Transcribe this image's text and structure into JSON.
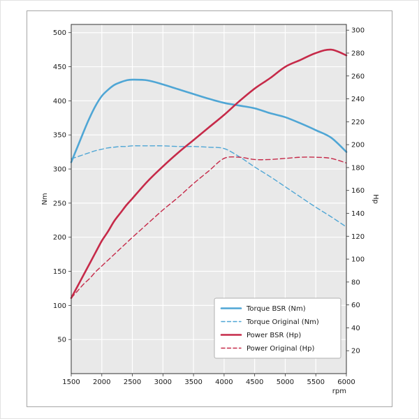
{
  "chart_data": {
    "type": "line",
    "title": "",
    "xlabel": "rpm",
    "ylabel_left": "Nm",
    "ylabel_right": "Hp",
    "xlim": [
      1500,
      6000
    ],
    "ylim_left": [
      0,
      512
    ],
    "ylim_right": [
      0,
      305
    ],
    "grid": true,
    "x_ticks": [
      1500,
      2000,
      2500,
      3000,
      3500,
      4000,
      4500,
      5000,
      5500,
      6000
    ],
    "y_ticks_left": [
      50,
      100,
      150,
      200,
      250,
      300,
      350,
      400,
      450,
      500
    ],
    "y_ticks_right": [
      20,
      40,
      60,
      80,
      100,
      120,
      140,
      160,
      180,
      200,
      220,
      240,
      260,
      280,
      300
    ],
    "x": [
      1500,
      1600,
      1700,
      1800,
      1900,
      2000,
      2100,
      2200,
      2300,
      2400,
      2500,
      2750,
      3000,
      3250,
      3500,
      3750,
      4000,
      4250,
      4500,
      4750,
      5000,
      5250,
      5500,
      5750,
      6000
    ],
    "series": [
      {
        "name": "Torque BSR (Nm)",
        "axis": "left",
        "line": "solid",
        "color": "#4fa6d5",
        "width": 2.6,
        "values": [
          310,
          332,
          354,
          375,
          393,
          407,
          416,
          423,
          427,
          430,
          431,
          430,
          424,
          417,
          410,
          403,
          397,
          393,
          389,
          382,
          376,
          367,
          357,
          346,
          325
        ]
      },
      {
        "name": "Torque Original (Nm)",
        "axis": "left",
        "line": "dashed",
        "color": "#4fa6d5",
        "width": 1.4,
        "values": [
          315,
          318,
          321,
          324,
          327,
          329,
          331,
          332,
          333,
          333,
          334,
          334,
          334,
          333,
          333,
          332,
          330,
          318,
          303,
          289,
          274,
          259,
          244,
          230,
          215
        ]
      },
      {
        "name": "Power BSR (Hp)",
        "axis": "right",
        "line": "solid",
        "color": "#c62a49",
        "width": 2.6,
        "values": [
          66,
          76,
          86,
          96,
          106,
          116,
          124,
          133,
          140,
          147,
          153,
          168,
          181,
          193,
          204,
          215,
          226,
          238,
          249,
          258,
          268,
          274,
          280,
          283,
          278
        ]
      },
      {
        "name": "Power Original (Hp)",
        "axis": "right",
        "line": "dashed",
        "color": "#c62a49",
        "width": 1.4,
        "values": [
          66,
          72,
          78,
          83,
          89,
          94,
          99,
          104,
          109,
          114,
          119,
          131,
          143,
          154,
          166,
          177,
          188,
          189,
          187,
          187,
          188,
          189,
          189,
          188,
          184
        ]
      }
    ],
    "legend": {
      "position": "lower-right",
      "entries": [
        "Torque BSR (Nm)",
        "Torque Original (Nm)",
        "Power BSR (Hp)",
        "Power Original (Hp)"
      ]
    },
    "colors": {
      "plot_background": "#e9e9e9",
      "grid": "#ffffff",
      "axis_frame": "#333333",
      "figure_border": "#a6a6a6",
      "text": "#1a1a1a",
      "legend_background": "#ffffff",
      "legend_border": "#b0b0b0"
    }
  }
}
